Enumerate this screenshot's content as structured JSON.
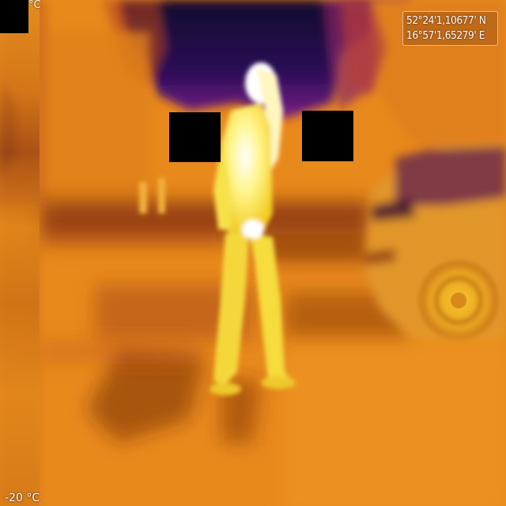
{
  "overlay": {
    "scale_top_label": "°C",
    "scale_bottom_label": "-20 °C",
    "gps": {
      "latitude": "52°24'1,10677' N",
      "longitude": "16°57'1,65279' E"
    }
  },
  "palette": {
    "background_orange": "#e8891c",
    "sky_dark": "#1a0a3a",
    "sky_purple": "#6a1a8a",
    "person_hot": "#fff36a",
    "person_core": "#ffffff",
    "shadow_dark": "#6a2208",
    "car_mid": "#d8901e"
  }
}
